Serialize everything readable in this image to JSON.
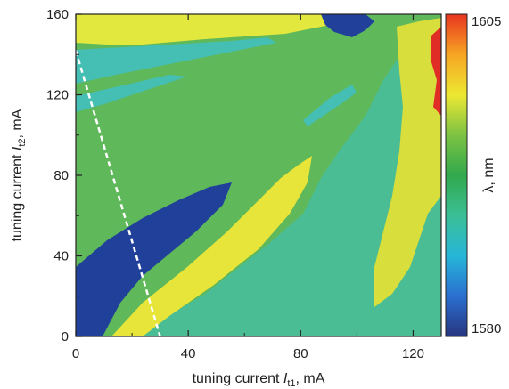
{
  "chart_data": {
    "type": "heatmap",
    "xlabel": {
      "prefix": "tuning current ",
      "symbol": "I",
      "sub": "t1",
      "suffix": ", mA"
    },
    "ylabel": {
      "prefix": "tuning current ",
      "symbol": "I",
      "sub": "t2",
      "suffix": ", mA"
    },
    "xlim": [
      0,
      130
    ],
    "ylim": [
      0,
      160
    ],
    "x_ticks": [
      0,
      40,
      80,
      120
    ],
    "x_minor_ticks": [
      20,
      60,
      100
    ],
    "y_ticks": [
      0,
      40,
      80,
      120,
      160
    ],
    "y_minor_ticks": [
      20,
      60,
      100,
      140
    ],
    "colorbar": {
      "label": "λ, nm",
      "min": 1580,
      "max": 1605,
      "tick_labels": [
        "1605",
        "1580"
      ],
      "colors": [
        "#27357f",
        "#2a6fd0",
        "#26b6d8",
        "#3bbf96",
        "#31a94c",
        "#7cc242",
        "#ede831",
        "#f6a523",
        "#e8341f"
      ]
    },
    "regions": [
      {
        "name": "background",
        "wavelength_nm": 1592,
        "color": "#5fb85a"
      },
      {
        "name": "lower-right",
        "wavelength_nm": 1589,
        "color": "#4bbd94"
      },
      {
        "name": "blue-band",
        "wavelength_nm": 1581,
        "color": "#21409a"
      },
      {
        "name": "yellow-band",
        "wavelength_nm": 1599,
        "color": "#e7e43a"
      },
      {
        "name": "upper-left-yellow",
        "wavelength_nm": 1599,
        "color": "#e3e83f"
      },
      {
        "name": "cyan-stripe",
        "wavelength_nm": 1587,
        "color": "#45bfb3"
      },
      {
        "name": "right-yellow",
        "wavelength_nm": 1600,
        "color": "#d8de3c"
      },
      {
        "name": "red-edge",
        "wavelength_nm": 1604,
        "color": "#e02d25"
      }
    ],
    "dashed_line": {
      "x": [
        0,
        30
      ],
      "y": [
        142,
        0
      ],
      "color": "#ffffff"
    }
  }
}
